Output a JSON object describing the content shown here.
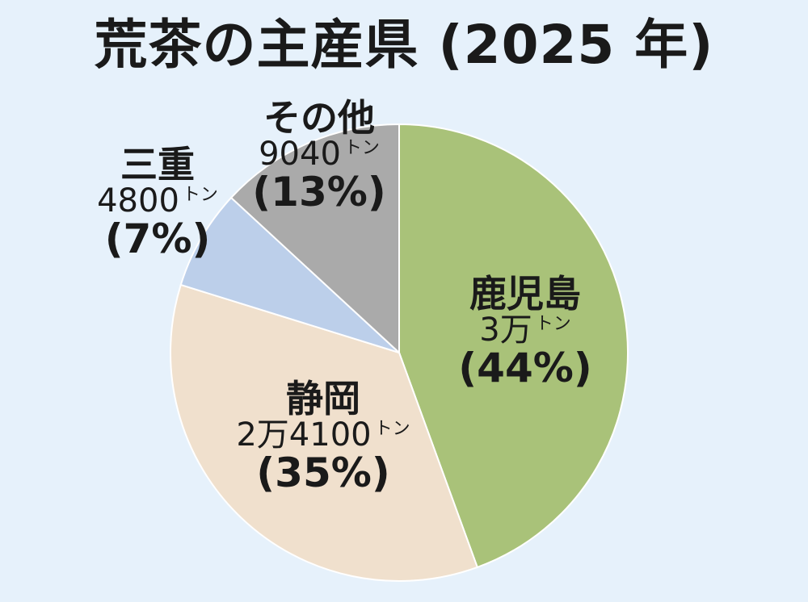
{
  "title": "荒茶の主産県 (2025 年)",
  "chart_data": {
    "type": "pie",
    "title": "荒茶の主産県 (2025 年)",
    "slices": [
      {
        "name": "鹿児島",
        "amount": "3万",
        "unit": "トン",
        "percent": "(44%)",
        "value": 44,
        "color": "#a9c279"
      },
      {
        "name": "静岡",
        "amount": "2万4100",
        "unit": "トン",
        "percent": "(35%)",
        "value": 35,
        "color": "#f0e0cd"
      },
      {
        "name": "三重",
        "amount": "4800",
        "unit": "トン",
        "percent": "(7%)",
        "value": 7,
        "color": "#bccfea"
      },
      {
        "name": "その他",
        "amount": "9040",
        "unit": "トン",
        "percent": "(13%)",
        "value": 13,
        "color": "#aaaaaa"
      }
    ],
    "start_angle_deg": 0,
    "direction": "clockwise"
  }
}
